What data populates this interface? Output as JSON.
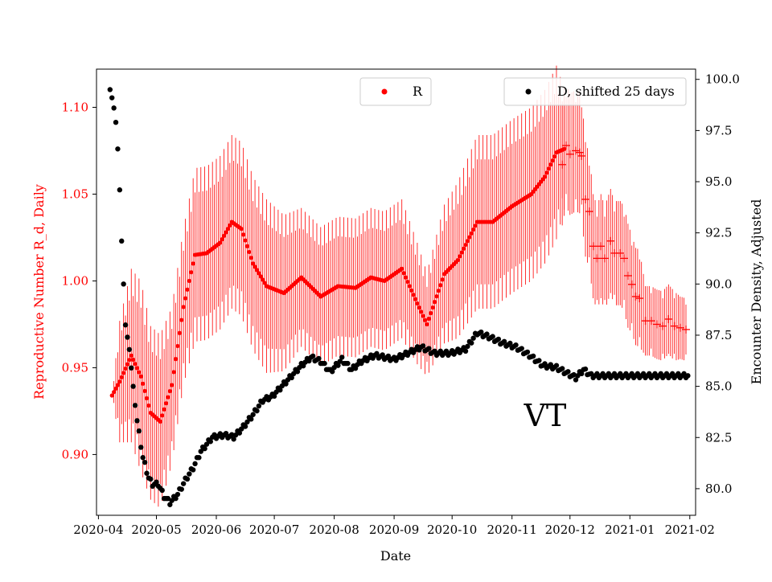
{
  "chart_data": {
    "type": "scatter",
    "title": "",
    "region_label": "VT",
    "xlabel": "Date",
    "ylabel_left": "Reproductive Number R_d, Daily",
    "ylabel_right": "Encounter Density, Adjusted",
    "x_range": [
      "2020-03-31",
      "2021-02-04"
    ],
    "ylim_left": [
      0.865,
      1.122
    ],
    "ylim_right": [
      78.7,
      100.5
    ],
    "x_ticks": [
      "2020-04",
      "2020-05",
      "2020-06",
      "2020-07",
      "2020-08",
      "2020-09",
      "2020-10",
      "2020-11",
      "2020-12",
      "2021-01",
      "2021-02"
    ],
    "y_ticks_left": [
      "0.90",
      "0.95",
      "1.00",
      "1.05",
      "1.10"
    ],
    "y_ticks_right": [
      "80.0",
      "82.5",
      "85.0",
      "87.5",
      "90.0",
      "92.5",
      "95.0",
      "97.5",
      "100.0"
    ],
    "legend": [
      {
        "label": "R",
        "color": "#ff0000",
        "position": "top-center"
      },
      {
        "label": "D, shifted 25 days",
        "color": "#000000",
        "position": "top-right"
      }
    ],
    "series": [
      {
        "name": "R",
        "axis": "left",
        "color": "#ff0000",
        "marker": "dot",
        "error_bars": true,
        "keypoints": [
          [
            "2020-04-08",
            0.934,
            0.0
          ],
          [
            "2020-04-12",
            0.942,
            0.035
          ],
          [
            "2020-04-18",
            0.957,
            0.05
          ],
          [
            "2020-04-23",
            0.945,
            0.055
          ],
          [
            "2020-04-28",
            0.924,
            0.05
          ],
          [
            "2020-05-03",
            0.919,
            0.05
          ],
          [
            "2020-05-09",
            0.94,
            0.045
          ],
          [
            "2020-05-15",
            0.985,
            0.045
          ],
          [
            "2020-05-21",
            1.015,
            0.05
          ],
          [
            "2020-05-27",
            1.016,
            0.05
          ],
          [
            "2020-06-03",
            1.022,
            0.05
          ],
          [
            "2020-06-09",
            1.034,
            0.05
          ],
          [
            "2020-06-14",
            1.03,
            0.05
          ],
          [
            "2020-06-20",
            1.01,
            0.05
          ],
          [
            "2020-06-27",
            0.997,
            0.05
          ],
          [
            "2020-07-06",
            0.993,
            0.045
          ],
          [
            "2020-07-15",
            1.002,
            0.04
          ],
          [
            "2020-07-25",
            0.991,
            0.04
          ],
          [
            "2020-08-03",
            0.997,
            0.04
          ],
          [
            "2020-08-12",
            0.996,
            0.04
          ],
          [
            "2020-08-20",
            1.002,
            0.04
          ],
          [
            "2020-08-27",
            1.0,
            0.04
          ],
          [
            "2020-09-05",
            1.007,
            0.04
          ],
          [
            "2020-09-13",
            0.987,
            0.035
          ],
          [
            "2020-09-18",
            0.975,
            0.03
          ],
          [
            "2020-09-27",
            1.004,
            0.04
          ],
          [
            "2020-10-04",
            1.012,
            0.045
          ],
          [
            "2020-10-14",
            1.034,
            0.05
          ],
          [
            "2020-10-22",
            1.034,
            0.05
          ],
          [
            "2020-11-01",
            1.043,
            0.05
          ],
          [
            "2020-11-11",
            1.05,
            0.05
          ],
          [
            "2020-11-18",
            1.06,
            0.05
          ],
          [
            "2020-11-24",
            1.074,
            0.05
          ],
          [
            "2020-11-28",
            1.076,
            0.035
          ]
        ],
        "crosses": [
          [
            "2020-11-27",
            1.067,
            0.035
          ],
          [
            "2020-11-29",
            1.078,
            0.035
          ],
          [
            "2020-12-01",
            1.073,
            0.035
          ],
          [
            "2020-12-04",
            1.075,
            0.035
          ],
          [
            "2020-12-06",
            1.074,
            0.035
          ],
          [
            "2020-12-07",
            1.072,
            0.035
          ],
          [
            "2020-12-09",
            1.047,
            0.033
          ],
          [
            "2020-12-11",
            1.04,
            0.033
          ],
          [
            "2020-12-13",
            1.02,
            0.03
          ],
          [
            "2020-12-15",
            1.013,
            0.03
          ],
          [
            "2020-12-17",
            1.02,
            0.03
          ],
          [
            "2020-12-19",
            1.013,
            0.03
          ],
          [
            "2020-12-22",
            1.023,
            0.03
          ],
          [
            "2020-12-24",
            1.016,
            0.03
          ],
          [
            "2020-12-27",
            1.016,
            0.03
          ],
          [
            "2020-12-29",
            1.013,
            0.03
          ],
          [
            "2020-12-31",
            1.003,
            0.03
          ],
          [
            "2021-01-02",
            0.998,
            0.028
          ],
          [
            "2021-01-04",
            0.991,
            0.028
          ],
          [
            "2021-01-06",
            0.99,
            0.028
          ],
          [
            "2021-01-09",
            0.977,
            0.02
          ],
          [
            "2021-01-12",
            0.977,
            0.02
          ],
          [
            "2021-01-15",
            0.975,
            0.02
          ],
          [
            "2021-01-18",
            0.974,
            0.02
          ],
          [
            "2021-01-21",
            0.978,
            0.02
          ],
          [
            "2021-01-24",
            0.974,
            0.02
          ],
          [
            "2021-01-27",
            0.973,
            0.018
          ],
          [
            "2021-01-30",
            0.972,
            0.018
          ]
        ]
      },
      {
        "name": "D, shifted 25 days",
        "axis": "right",
        "color": "#000000",
        "marker": "dot",
        "keypoints": [
          [
            "2020-04-07",
            99.5
          ],
          [
            "2020-04-08",
            99.1
          ],
          [
            "2020-04-09",
            98.6
          ],
          [
            "2020-04-10",
            97.9
          ],
          [
            "2020-04-11",
            96.6
          ],
          [
            "2020-04-12",
            94.6
          ],
          [
            "2020-04-13",
            92.1
          ],
          [
            "2020-04-14",
            90.0
          ],
          [
            "2020-04-15",
            88.0
          ],
          [
            "2020-04-17",
            86.8
          ],
          [
            "2020-04-19",
            85.0
          ],
          [
            "2020-04-21",
            83.3
          ],
          [
            "2020-04-24",
            81.5
          ],
          [
            "2020-04-27",
            80.5
          ],
          [
            "2020-04-29",
            80.2
          ],
          [
            "2020-05-02",
            80.2
          ],
          [
            "2020-05-05",
            79.6
          ],
          [
            "2020-05-08",
            79.3
          ],
          [
            "2020-05-12",
            79.7
          ],
          [
            "2020-05-16",
            80.4
          ],
          [
            "2020-05-20",
            81.0
          ],
          [
            "2020-05-24",
            81.8
          ],
          [
            "2020-05-30",
            82.5
          ],
          [
            "2020-06-05",
            82.6
          ],
          [
            "2020-06-10",
            82.5
          ],
          [
            "2020-06-15",
            83.0
          ],
          [
            "2020-06-20",
            83.6
          ],
          [
            "2020-06-25",
            84.3
          ],
          [
            "2020-06-30",
            84.5
          ],
          [
            "2020-07-05",
            85.0
          ],
          [
            "2020-07-10",
            85.5
          ],
          [
            "2020-07-15",
            86.0
          ],
          [
            "2020-07-20",
            86.4
          ],
          [
            "2020-07-25",
            86.2
          ],
          [
            "2020-07-30",
            85.7
          ],
          [
            "2020-08-05",
            86.3
          ],
          [
            "2020-08-10",
            85.8
          ],
          [
            "2020-08-15",
            86.2
          ],
          [
            "2020-08-22",
            86.5
          ],
          [
            "2020-09-01",
            86.3
          ],
          [
            "2020-09-08",
            86.6
          ],
          [
            "2020-09-15",
            86.9
          ],
          [
            "2020-09-22",
            86.6
          ],
          [
            "2020-09-30",
            86.6
          ],
          [
            "2020-10-08",
            86.8
          ],
          [
            "2020-10-14",
            87.6
          ],
          [
            "2020-10-20",
            87.4
          ],
          [
            "2020-10-27",
            87.1
          ],
          [
            "2020-11-03",
            86.9
          ],
          [
            "2020-11-10",
            86.5
          ],
          [
            "2020-11-17",
            86.0
          ],
          [
            "2020-11-24",
            85.9
          ],
          [
            "2020-11-30",
            85.6
          ],
          [
            "2020-12-04",
            85.4
          ],
          [
            "2020-12-08",
            85.8
          ],
          [
            "2020-12-12",
            85.5
          ],
          [
            "2021-01-31",
            85.5
          ]
        ]
      }
    ]
  }
}
